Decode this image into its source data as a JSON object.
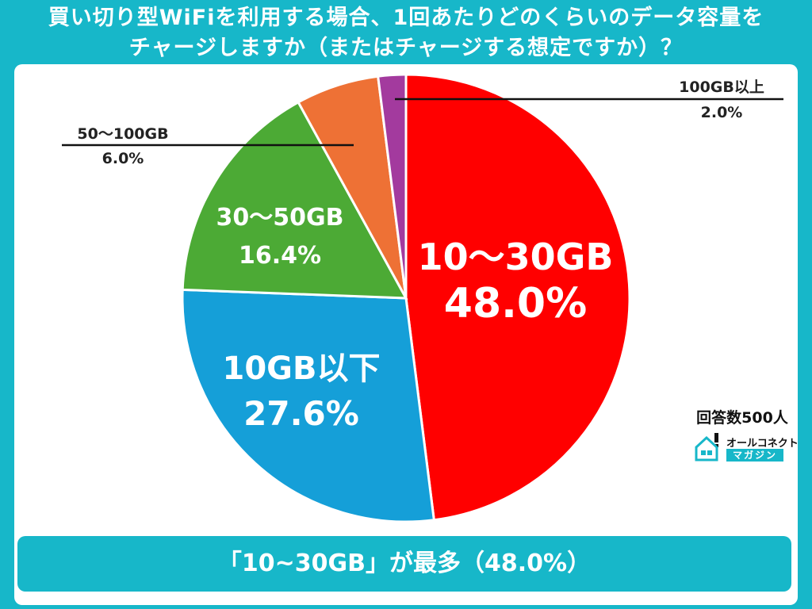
{
  "title_lines": [
    "買い切り型WiFiを利用する場合、1回あたりどのくらいのデータ容量を",
    "チャージしますか（またはチャージする想定ですか）？"
  ],
  "source": "回答数500人",
  "brand": {
    "top": "オールコネクト",
    "bottom": "マガジン"
  },
  "summary_text": "「10~30GB」が最多（48.0%）",
  "chart_data": {
    "type": "pie",
    "title": "買い切り型WiFiを利用する場合、1回あたりどのくらいのデータ容量をチャージしますか（またはチャージする想定ですか）？",
    "categories": [
      "10〜30GB",
      "10GB以下",
      "30〜50GB",
      "50〜100GB",
      "100GB以上"
    ],
    "values": [
      48.0,
      27.6,
      16.4,
      6.0,
      2.0
    ],
    "value_labels": [
      "48.0%",
      "27.6%",
      "16.4%",
      "6.0%",
      "2.0%"
    ],
    "colors": [
      "#ff0000",
      "#159fd8",
      "#4caa35",
      "#ee7135",
      "#a33a9e"
    ],
    "unit": "%"
  }
}
